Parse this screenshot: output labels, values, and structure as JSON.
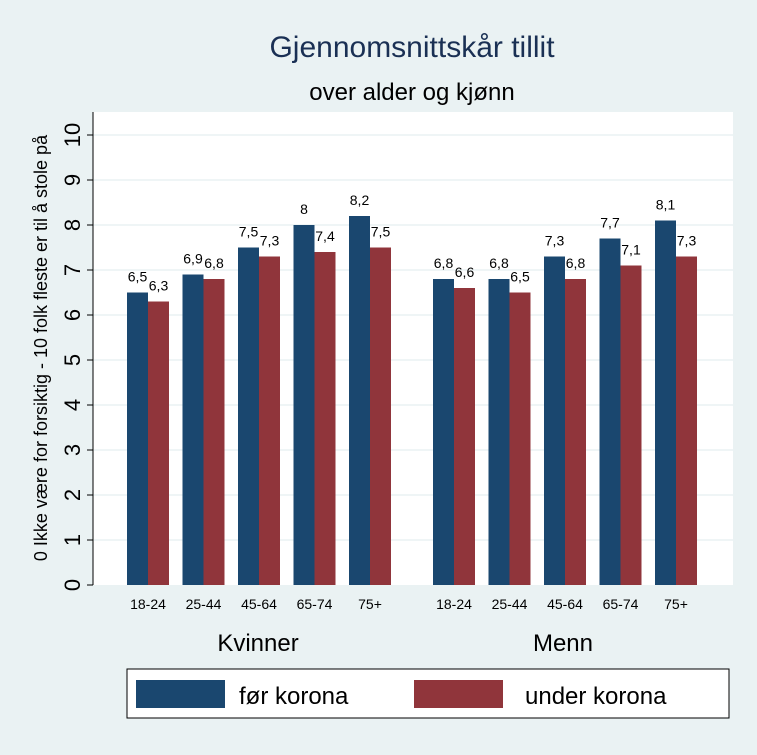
{
  "chart_data": {
    "type": "bar",
    "title": "Gjennomsnittskår tillit",
    "subtitle": "over alder og kjønn",
    "ylabel": "0 Ikke være for forsiktig - 10 folk fleste er til å stole på",
    "ylim": [
      0,
      10
    ],
    "yticks": [
      "0",
      "1",
      "2",
      "3",
      "4",
      "5",
      "6",
      "7",
      "8",
      "9",
      "10"
    ],
    "grid": true,
    "legend_position": "bottom",
    "groups": [
      {
        "name": "Kvinner",
        "categories": [
          "18-24",
          "25-44",
          "45-64",
          "65-74",
          "75+"
        ],
        "series": [
          {
            "name": "før korona",
            "values": [
              6.5,
              6.9,
              7.5,
              8.0,
              8.2
            ],
            "labels": [
              "6,5",
              "6,9",
              "7,5",
              "8",
              "8,2"
            ]
          },
          {
            "name": "under korona",
            "values": [
              6.3,
              6.8,
              7.3,
              7.4,
              7.5
            ],
            "labels": [
              "6,3",
              "6,8",
              "7,3",
              "7,4",
              "7,5"
            ]
          }
        ]
      },
      {
        "name": "Menn",
        "categories": [
          "18-24",
          "25-44",
          "45-64",
          "65-74",
          "75+"
        ],
        "series": [
          {
            "name": "før korona",
            "values": [
              6.8,
              6.8,
              7.3,
              7.7,
              8.1
            ],
            "labels": [
              "6,8",
              "6,8",
              "7,3",
              "7,7",
              "8,1"
            ]
          },
          {
            "name": "under korona",
            "values": [
              6.6,
              6.5,
              6.8,
              7.1,
              7.3
            ],
            "labels": [
              "6,6",
              "6,5",
              "6,8",
              "7,1",
              "7,3"
            ]
          }
        ]
      }
    ],
    "colors": {
      "før korona": "#1a476f",
      "under korona": "#90353b"
    }
  }
}
